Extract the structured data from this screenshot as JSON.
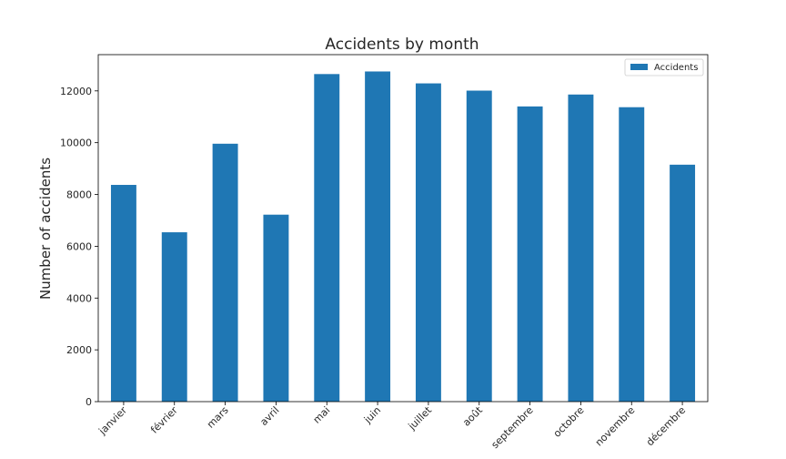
{
  "chart_data": {
    "type": "bar",
    "title": "Accidents by month",
    "xlabel": "",
    "ylabel": "Number of accidents",
    "categories": [
      "janvier",
      "février",
      "mars",
      "avril",
      "mai",
      "juin",
      "juillet",
      "août",
      "septembre",
      "octobre",
      "novembre",
      "décembre"
    ],
    "series": [
      {
        "name": "Accidents",
        "color": "#1f77b4",
        "values": [
          8370,
          6540,
          9960,
          7220,
          12650,
          12750,
          12290,
          12010,
          11400,
          11860,
          11370,
          9150
        ]
      }
    ],
    "ylim": [
      0,
      13400
    ],
    "yticks": [
      0,
      2000,
      4000,
      6000,
      8000,
      10000,
      12000
    ],
    "legend": "top-right",
    "grid": false
  }
}
